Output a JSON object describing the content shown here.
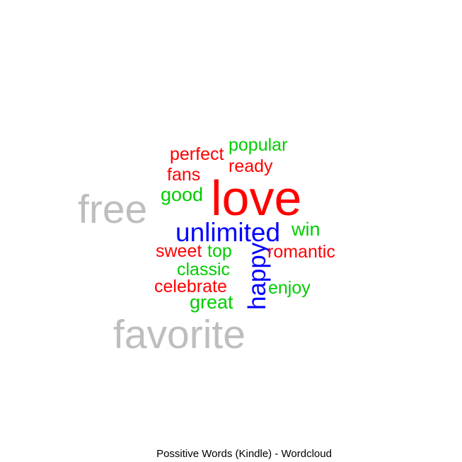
{
  "chart_data": {
    "type": "wordcloud",
    "title": "Possitive Words (Kindle) - Wordcloud",
    "words": [
      {
        "text": "love",
        "color": "#ff0000"
      },
      {
        "text": "unlimited",
        "color": "#0000ff"
      },
      {
        "text": "happy",
        "color": "#0000ff"
      },
      {
        "text": "free",
        "color": "#bebebe"
      },
      {
        "text": "favorite",
        "color": "#bebebe"
      },
      {
        "text": "popular",
        "color": "#00cd00"
      },
      {
        "text": "perfect",
        "color": "#ff0000"
      },
      {
        "text": "ready",
        "color": "#ff0000"
      },
      {
        "text": "fans",
        "color": "#ff0000"
      },
      {
        "text": "good",
        "color": "#00cd00"
      },
      {
        "text": "win",
        "color": "#00cd00"
      },
      {
        "text": "sweet",
        "color": "#ff0000"
      },
      {
        "text": "top",
        "color": "#00cd00"
      },
      {
        "text": "romantic",
        "color": "#ff0000"
      },
      {
        "text": "classic",
        "color": "#00cd00"
      },
      {
        "text": "celebrate",
        "color": "#ff0000"
      },
      {
        "text": "enjoy",
        "color": "#00cd00"
      },
      {
        "text": "great",
        "color": "#00cd00"
      }
    ]
  }
}
